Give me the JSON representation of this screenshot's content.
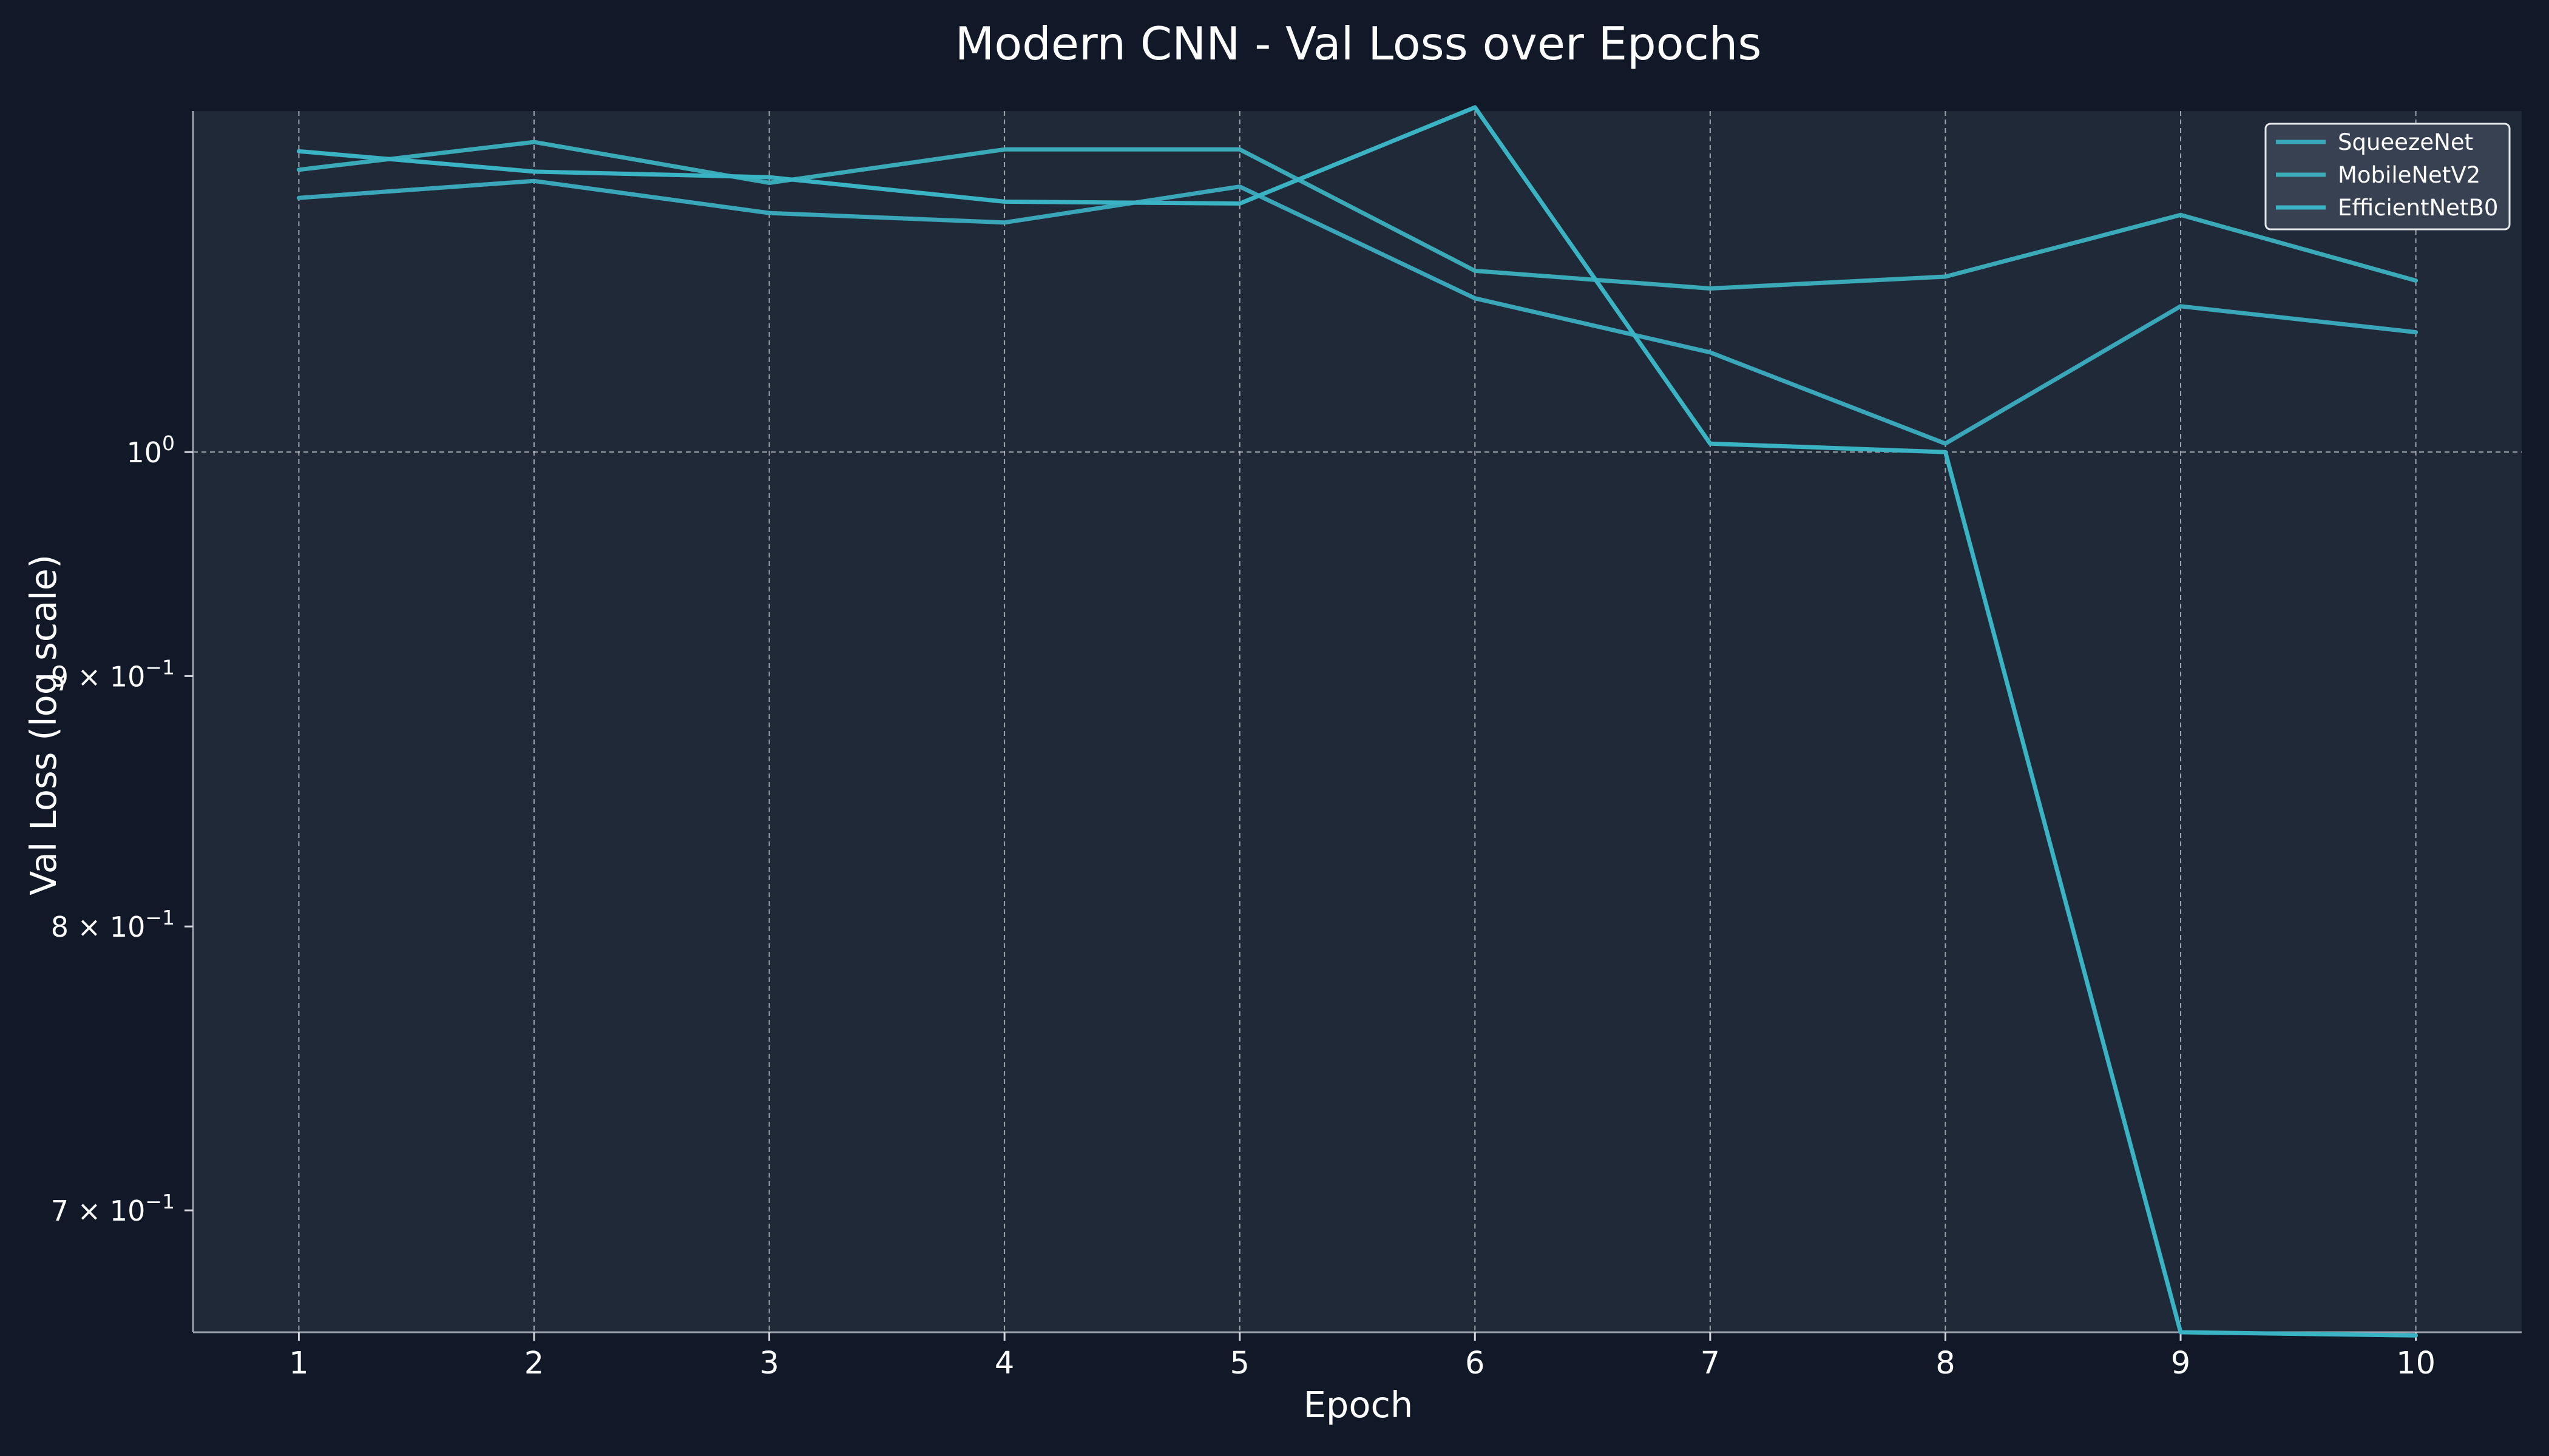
{
  "chart_data": {
    "type": "line",
    "title": "Modern CNN - Val Loss over Epochs",
    "xlabel": "Epoch",
    "ylabel": "Val Loss (log scale)",
    "yscale": "log",
    "x": [
      1,
      2,
      3,
      4,
      5,
      6,
      7,
      8,
      9,
      10
    ],
    "xlim": [
      0.55,
      10.45
    ],
    "ylim": [
      0.661,
      1.174
    ],
    "xticks": [
      {
        "value": 1,
        "label": "1"
      },
      {
        "value": 2,
        "label": "2"
      },
      {
        "value": 3,
        "label": "3"
      },
      {
        "value": 4,
        "label": "4"
      },
      {
        "value": 5,
        "label": "5"
      },
      {
        "value": 6,
        "label": "6"
      },
      {
        "value": 7,
        "label": "7"
      },
      {
        "value": 8,
        "label": "8"
      },
      {
        "value": 9,
        "label": "9"
      },
      {
        "value": 10,
        "label": "10"
      }
    ],
    "yticks": [
      {
        "value": 1.0,
        "base": "10",
        "exp": "0",
        "grid": true
      },
      {
        "value": 0.9,
        "base": "9 × 10",
        "exp": "−1",
        "grid": false
      },
      {
        "value": 0.8,
        "base": "8 × 10",
        "exp": "−1",
        "grid": false
      },
      {
        "value": 0.7,
        "base": "7 × 10",
        "exp": "−1",
        "grid": false
      }
    ],
    "grid": "x-major, y-major",
    "legend_position": "top-right",
    "series": [
      {
        "name": "SqueezeNet",
        "color": "#3aa6b9",
        "values": [
          1.127,
          1.136,
          1.119,
          1.114,
          1.133,
          1.075,
          1.048,
          1.004,
          1.071,
          1.058
        ]
      },
      {
        "name": "MobileNetV2",
        "color": "#3aaab8",
        "values": [
          1.142,
          1.157,
          1.135,
          1.153,
          1.153,
          1.089,
          1.08,
          1.086,
          1.118,
          1.084
        ]
      },
      {
        "name": "EfficientNetB0",
        "color": "#3ab4c4",
        "values": [
          1.152,
          1.141,
          1.138,
          1.125,
          1.124,
          1.176,
          1.004,
          1.0,
          0.661,
          0.66
        ]
      }
    ]
  }
}
